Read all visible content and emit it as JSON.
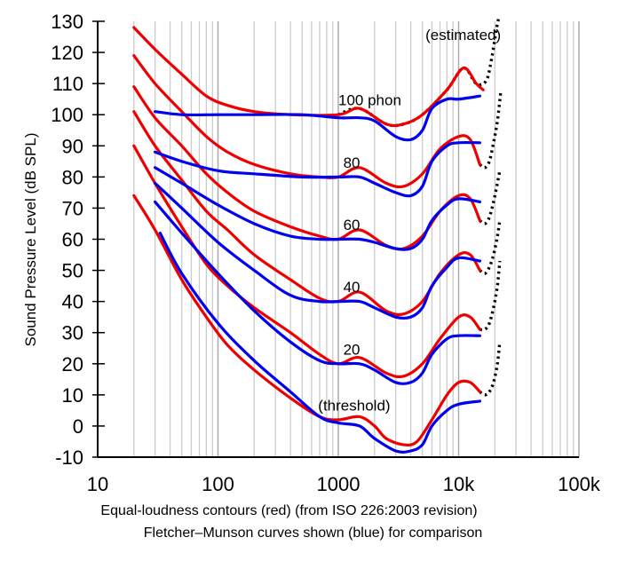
{
  "chart_data": {
    "type": "line",
    "caption_line1": "Equal-loudness contours (red) (from ISO 226:2003 revision)",
    "caption_line2": "Fletcher–Munson curves shown (blue) for comparison",
    "ylabel": "Sound Pressure Level (dB SPL)",
    "x_scale": "log",
    "xlim": [
      10,
      100000
    ],
    "ylim": [
      -10,
      130
    ],
    "x_ticks": [
      {
        "value": 10,
        "label": "10"
      },
      {
        "value": 100,
        "label": "100"
      },
      {
        "value": 1000,
        "label": "1000"
      },
      {
        "value": 10000,
        "label": "10k"
      },
      {
        "value": 100000,
        "label": "100k"
      }
    ],
    "y_ticks": [
      -10,
      0,
      10,
      20,
      30,
      40,
      50,
      60,
      70,
      80,
      90,
      100,
      110,
      120,
      130
    ],
    "grid": true,
    "colors": {
      "iso": "#ee0000",
      "fletcher": "#0000ee",
      "estimated": "#000000",
      "grid": "#cccccc"
    },
    "annotations": [
      {
        "text": "(estimated)",
        "x": 5300,
        "y": 124
      },
      {
        "text": "100 phon",
        "x": 1000,
        "y": 103
      },
      {
        "text": "80",
        "x": 1100,
        "y": 83
      },
      {
        "text": "60",
        "x": 1100,
        "y": 63
      },
      {
        "text": "40",
        "x": 1100,
        "y": 43
      },
      {
        "text": "20",
        "x": 1100,
        "y": 23
      },
      {
        "text": "(threshold)",
        "x": 680,
        "y": 5
      }
    ],
    "series": [
      {
        "group": "iso",
        "points": [
          [
            20,
            128
          ],
          [
            30,
            121
          ],
          [
            50,
            113
          ],
          [
            80,
            106
          ],
          [
            120,
            103
          ],
          [
            200,
            101
          ],
          [
            400,
            100
          ],
          [
            1000,
            100
          ],
          [
            1500,
            102
          ],
          [
            2500,
            97
          ],
          [
            3500,
            97
          ],
          [
            5000,
            100
          ],
          [
            8000,
            108
          ],
          [
            11000,
            115
          ],
          [
            14000,
            110
          ],
          [
            16000,
            108
          ]
        ]
      },
      {
        "group": "iso",
        "points": [
          [
            20,
            119
          ],
          [
            30,
            110
          ],
          [
            50,
            101
          ],
          [
            80,
            93
          ],
          [
            120,
            88
          ],
          [
            200,
            84
          ],
          [
            400,
            81
          ],
          [
            700,
            80
          ],
          [
            1000,
            80
          ],
          [
            1500,
            83
          ],
          [
            2500,
            78
          ],
          [
            3500,
            77
          ],
          [
            5000,
            81
          ],
          [
            7000,
            89
          ],
          [
            10000,
            93
          ],
          [
            12500,
            92
          ],
          [
            15000,
            84
          ]
        ]
      },
      {
        "group": "iso",
        "points": [
          [
            20,
            109
          ],
          [
            30,
            99
          ],
          [
            50,
            90
          ],
          [
            80,
            81
          ],
          [
            120,
            75
          ],
          [
            200,
            69
          ],
          [
            400,
            64
          ],
          [
            700,
            61
          ],
          [
            1000,
            60
          ],
          [
            1500,
            63
          ],
          [
            2500,
            58
          ],
          [
            3500,
            57
          ],
          [
            5000,
            61
          ],
          [
            7000,
            69
          ],
          [
            10000,
            74
          ],
          [
            12500,
            73
          ],
          [
            15000,
            66
          ]
        ]
      },
      {
        "group": "iso",
        "points": [
          [
            20,
            101
          ],
          [
            30,
            90
          ],
          [
            50,
            79
          ],
          [
            80,
            69
          ],
          [
            120,
            63
          ],
          [
            200,
            55
          ],
          [
            400,
            47
          ],
          [
            700,
            41
          ],
          [
            1000,
            40
          ],
          [
            1500,
            43
          ],
          [
            2500,
            37
          ],
          [
            3500,
            36
          ],
          [
            5000,
            40
          ],
          [
            7000,
            49
          ],
          [
            10000,
            55
          ],
          [
            12500,
            55
          ],
          [
            15000,
            50
          ]
        ]
      },
      {
        "group": "iso",
        "points": [
          [
            20,
            90
          ],
          [
            30,
            78
          ],
          [
            50,
            64
          ],
          [
            80,
            52
          ],
          [
            120,
            45
          ],
          [
            200,
            38
          ],
          [
            400,
            30
          ],
          [
            700,
            23
          ],
          [
            1000,
            20
          ],
          [
            1500,
            22
          ],
          [
            2500,
            17
          ],
          [
            3500,
            16
          ],
          [
            5000,
            20
          ],
          [
            7000,
            28
          ],
          [
            10000,
            35
          ],
          [
            12500,
            35
          ],
          [
            15000,
            31
          ]
        ]
      },
      {
        "group": "iso",
        "points": [
          [
            20,
            74
          ],
          [
            30,
            63
          ],
          [
            50,
            47
          ],
          [
            80,
            35
          ],
          [
            120,
            26
          ],
          [
            200,
            18
          ],
          [
            400,
            9
          ],
          [
            700,
            3
          ],
          [
            1000,
            2
          ],
          [
            1500,
            3
          ],
          [
            2000,
            0
          ],
          [
            2500,
            -4
          ],
          [
            3500,
            -6
          ],
          [
            4500,
            -5
          ],
          [
            6000,
            2
          ],
          [
            8000,
            10
          ],
          [
            10000,
            14
          ],
          [
            12500,
            14
          ],
          [
            15000,
            11
          ]
        ]
      },
      {
        "group": "fletcher",
        "points": [
          [
            30,
            101
          ],
          [
            50,
            100
          ],
          [
            100,
            100
          ],
          [
            200,
            100
          ],
          [
            500,
            100
          ],
          [
            1000,
            99
          ],
          [
            1500,
            99
          ],
          [
            2000,
            98
          ],
          [
            3000,
            93
          ],
          [
            4000,
            92
          ],
          [
            5000,
            95
          ],
          [
            6000,
            102
          ],
          [
            8000,
            105
          ],
          [
            10000,
            105
          ],
          [
            15000,
            106
          ]
        ]
      },
      {
        "group": "fletcher",
        "points": [
          [
            30,
            88
          ],
          [
            50,
            85
          ],
          [
            100,
            82
          ],
          [
            200,
            81
          ],
          [
            500,
            80
          ],
          [
            1000,
            80
          ],
          [
            1500,
            80
          ],
          [
            2000,
            78
          ],
          [
            3000,
            75
          ],
          [
            4000,
            74
          ],
          [
            5000,
            77
          ],
          [
            6000,
            85
          ],
          [
            8000,
            90
          ],
          [
            10000,
            91
          ],
          [
            15000,
            91
          ]
        ]
      },
      {
        "group": "fletcher",
        "points": [
          [
            30,
            83
          ],
          [
            50,
            78
          ],
          [
            100,
            71
          ],
          [
            200,
            65
          ],
          [
            400,
            61
          ],
          [
            700,
            60
          ],
          [
            1000,
            60
          ],
          [
            1500,
            60
          ],
          [
            2000,
            59
          ],
          [
            3000,
            57
          ],
          [
            4000,
            57
          ],
          [
            5000,
            60
          ],
          [
            6000,
            66
          ],
          [
            8000,
            71
          ],
          [
            10000,
            73
          ],
          [
            15000,
            72
          ]
        ]
      },
      {
        "group": "fletcher",
        "points": [
          [
            30,
            78
          ],
          [
            50,
            70
          ],
          [
            100,
            59
          ],
          [
            200,
            50
          ],
          [
            400,
            42
          ],
          [
            700,
            40
          ],
          [
            1000,
            40
          ],
          [
            1500,
            40
          ],
          [
            2000,
            38
          ],
          [
            3000,
            35
          ],
          [
            4000,
            35
          ],
          [
            5000,
            38
          ],
          [
            6000,
            45
          ],
          [
            8000,
            51
          ],
          [
            10000,
            54
          ],
          [
            15000,
            53
          ]
        ]
      },
      {
        "group": "fletcher",
        "points": [
          [
            30,
            72
          ],
          [
            50,
            62
          ],
          [
            100,
            49
          ],
          [
            200,
            37
          ],
          [
            400,
            27
          ],
          [
            700,
            21
          ],
          [
            1000,
            20
          ],
          [
            1500,
            20
          ],
          [
            2000,
            18
          ],
          [
            3000,
            14
          ],
          [
            4000,
            14
          ],
          [
            5000,
            17
          ],
          [
            6000,
            23
          ],
          [
            8000,
            28
          ],
          [
            10000,
            29
          ],
          [
            15000,
            29
          ]
        ]
      },
      {
        "group": "fletcher",
        "points": [
          [
            33,
            62
          ],
          [
            50,
            49
          ],
          [
            100,
            33
          ],
          [
            200,
            21
          ],
          [
            400,
            11
          ],
          [
            700,
            3
          ],
          [
            1000,
            1
          ],
          [
            1500,
            0
          ],
          [
            2000,
            -4
          ],
          [
            3000,
            -8
          ],
          [
            4000,
            -8
          ],
          [
            5000,
            -6
          ],
          [
            6000,
            0
          ],
          [
            8000,
            5
          ],
          [
            10000,
            7
          ],
          [
            15000,
            8
          ]
        ]
      },
      {
        "group": "estimated",
        "points": [
          [
            1000,
            100
          ],
          [
            1500,
            102
          ],
          [
            2500,
            97
          ],
          [
            3500,
            97
          ],
          [
            5000,
            100
          ],
          [
            8000,
            108
          ],
          [
            11000,
            115
          ],
          [
            14000,
            110
          ],
          [
            17000,
            111
          ],
          [
            19000,
            119
          ],
          [
            20500,
            127
          ],
          [
            21500,
            131
          ]
        ]
      },
      {
        "group": "estimated",
        "points": [
          [
            15000,
            84
          ],
          [
            16500,
            83
          ],
          [
            18000,
            85
          ],
          [
            19500,
            91
          ],
          [
            21000,
            98
          ],
          [
            22500,
            108
          ]
        ]
      },
      {
        "group": "estimated",
        "points": [
          [
            15000,
            66
          ],
          [
            16500,
            65
          ],
          [
            18000,
            67
          ],
          [
            19500,
            72
          ],
          [
            21000,
            78
          ],
          [
            22000,
            82
          ]
        ]
      },
      {
        "group": "estimated",
        "points": [
          [
            15000,
            50
          ],
          [
            16500,
            49
          ],
          [
            18000,
            51
          ],
          [
            19500,
            55
          ],
          [
            21000,
            61
          ],
          [
            22000,
            66
          ]
        ]
      },
      {
        "group": "estimated",
        "points": [
          [
            15000,
            31
          ],
          [
            16500,
            31
          ],
          [
            18000,
            33
          ],
          [
            19500,
            38
          ],
          [
            21000,
            45
          ],
          [
            22000,
            53
          ]
        ]
      },
      {
        "group": "estimated",
        "points": [
          [
            15000,
            11
          ],
          [
            16500,
            10
          ],
          [
            18000,
            11
          ],
          [
            19500,
            14
          ],
          [
            21000,
            20
          ],
          [
            22000,
            27
          ]
        ]
      }
    ]
  }
}
